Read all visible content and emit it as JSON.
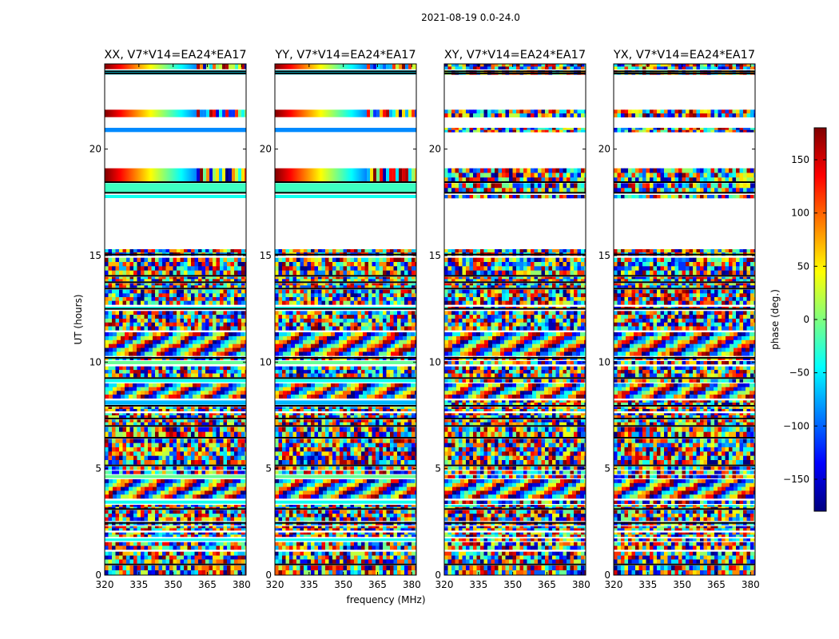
{
  "figure_title": "2021-08-19 0.0-24.0",
  "chart_data": {
    "type": "heatmap",
    "x_label": "frequency (MHz)",
    "y_label": "UT (hours)",
    "xlim": [
      320,
      382
    ],
    "ylim": [
      0,
      24
    ],
    "x_ticks": [
      320,
      335,
      350,
      365,
      380
    ],
    "y_ticks": [
      0,
      5,
      10,
      15,
      20
    ],
    "colorbar": {
      "label": "phase (deg.)",
      "range": [
        -180,
        180
      ],
      "ticks": [
        -150,
        -100,
        -50,
        0,
        50,
        100,
        150
      ],
      "tick_labels": [
        "−150",
        "−100",
        "−50",
        "0",
        "50",
        "100",
        "150"
      ],
      "colormap": "jet",
      "jet_stops": [
        "#00007f",
        "#0000ff",
        "#007fff",
        "#00ffff",
        "#7fff7f",
        "#ffff00",
        "#ff7f00",
        "#ff0000",
        "#7f0000"
      ]
    },
    "panels": [
      {
        "title": "XX, V7*V14=EA24*EA17",
        "kind": "parallel"
      },
      {
        "title": "YY, V7*V14=EA24*EA17",
        "kind": "parallel"
      },
      {
        "title": "XY, V7*V14=EA24*EA17",
        "kind": "cross"
      },
      {
        "title": "YX, V7*V14=EA24*EA17",
        "kind": "cross"
      }
    ],
    "no_data_ranges_ut": [
      [
        15.3,
        17.7
      ],
      [
        19.1,
        20.8
      ],
      [
        21.0,
        21.5
      ],
      [
        21.85,
        23.5
      ]
    ],
    "scans_ut": [
      {
        "start": 0.0,
        "end": 0.45,
        "style": "noisy"
      },
      {
        "start": 0.55,
        "end": 1.1,
        "style": "noisy"
      },
      {
        "start": 1.2,
        "end": 1.55,
        "style": "noisy"
      },
      {
        "start": 1.6,
        "end": 1.72,
        "style": "smooth"
      },
      {
        "start": 1.8,
        "end": 2.0,
        "style": "noisy"
      },
      {
        "start": 2.1,
        "end": 2.3,
        "style": "noisy"
      },
      {
        "start": 2.35,
        "end": 2.5,
        "style": "noisy"
      },
      {
        "start": 2.55,
        "end": 3.05,
        "style": "noisy"
      },
      {
        "start": 3.1,
        "end": 3.3,
        "style": "noisy"
      },
      {
        "start": 3.35,
        "end": 3.5,
        "style": "smooth"
      },
      {
        "start": 3.6,
        "end": 4.5,
        "style": "fringe"
      },
      {
        "start": 4.55,
        "end": 4.7,
        "style": "smooth"
      },
      {
        "start": 4.75,
        "end": 4.9,
        "style": "noisy"
      },
      {
        "start": 4.95,
        "end": 5.1,
        "style": "noisy"
      },
      {
        "start": 5.2,
        "end": 6.4,
        "style": "noisy"
      },
      {
        "start": 6.5,
        "end": 6.95,
        "style": "noisy"
      },
      {
        "start": 7.05,
        "end": 7.3,
        "style": "noisy"
      },
      {
        "start": 7.4,
        "end": 7.6,
        "style": "noisy"
      },
      {
        "start": 7.7,
        "end": 7.9,
        "style": "noisy"
      },
      {
        "start": 8.0,
        "end": 8.2,
        "style": "smooth"
      },
      {
        "start": 8.3,
        "end": 9.0,
        "style": "fringe"
      },
      {
        "start": 9.05,
        "end": 9.2,
        "style": "smooth"
      },
      {
        "start": 9.3,
        "end": 9.8,
        "style": "noisy"
      },
      {
        "start": 9.9,
        "end": 10.05,
        "style": "smooth"
      },
      {
        "start": 10.1,
        "end": 10.25,
        "style": "noisy"
      },
      {
        "start": 10.3,
        "end": 11.4,
        "style": "fringe"
      },
      {
        "start": 11.5,
        "end": 12.4,
        "style": "noisy"
      },
      {
        "start": 12.5,
        "end": 12.6,
        "style": "smooth"
      },
      {
        "start": 12.7,
        "end": 13.4,
        "style": "noisy"
      },
      {
        "start": 13.5,
        "end": 13.7,
        "style": "noisy"
      },
      {
        "start": 13.8,
        "end": 14.0,
        "style": "noisy"
      },
      {
        "start": 14.1,
        "end": 14.9,
        "style": "noisy"
      },
      {
        "start": 15.0,
        "end": 15.3,
        "style": "noisy"
      },
      {
        "start": 17.7,
        "end": 17.85,
        "style": "smooth"
      },
      {
        "start": 17.95,
        "end": 18.4,
        "style": "smooth"
      },
      {
        "start": 18.45,
        "end": 19.1,
        "style": "gradient"
      },
      {
        "start": 20.8,
        "end": 21.0,
        "style": "smooth"
      },
      {
        "start": 21.5,
        "end": 21.85,
        "style": "gradient"
      },
      {
        "start": 23.5,
        "end": 23.7,
        "style": "smooth"
      },
      {
        "start": 23.75,
        "end": 24.0,
        "style": "gradient"
      }
    ],
    "separator_lines_ut": [
      0.5,
      2.45,
      3.1,
      5.15,
      6.45,
      7.0,
      7.35,
      7.95,
      9.25,
      10.2,
      12.5,
      13.45,
      13.75,
      14.05,
      15.05,
      17.95,
      18.45,
      23.55,
      23.65
    ]
  }
}
